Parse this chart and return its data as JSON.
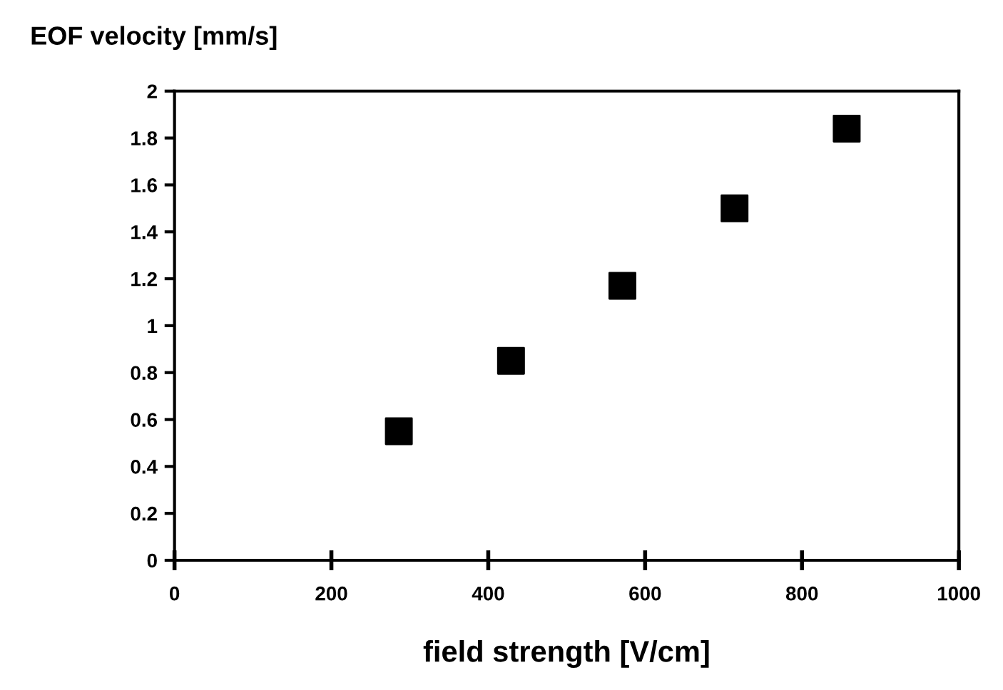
{
  "chart_data": {
    "type": "scatter",
    "ylabel": "EOF velocity [mm/s]",
    "xlabel": "field strength [V/cm]",
    "x": [
      286,
      429,
      571,
      714,
      857
    ],
    "series": [
      {
        "color": "#000000",
        "values": [
          0.55,
          0.85,
          1.17,
          1.5,
          1.84
        ]
      }
    ],
    "xlim": [
      0,
      1000
    ],
    "xticks": [
      0,
      200,
      400,
      600,
      800,
      1000
    ],
    "ylim": [
      0,
      2
    ],
    "yticks": [
      0,
      0.2,
      0.4,
      0.6,
      0.8,
      1,
      1.2,
      1.4,
      1.6,
      1.8,
      2
    ],
    "marker": "square",
    "grid": false,
    "legend": false
  }
}
